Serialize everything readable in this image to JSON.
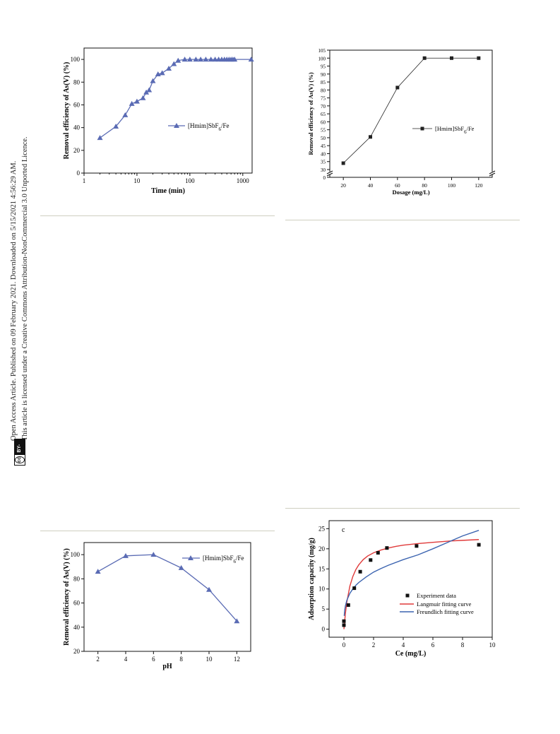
{
  "sidebar": {
    "line1": "Open Access Article. Published on 09 February 2021. Downloaded on 5/15/2021 4:56:29 AM.",
    "line2": "This article is licensed under a Creative Commons Attribution-NonCommercial 3.0 Unported Licence.",
    "badge_cc": "cc",
    "badge_label": "BY-NC"
  },
  "colors": {
    "blue_series": "#5a6bb4",
    "black_series": "#222222",
    "red_fit": "#e03a3a",
    "blue_fit": "#3c64b0",
    "rule": "#cfcfc0"
  },
  "chart_data": [
    {
      "id": "time",
      "type": "line",
      "xlabel": "Time (min)",
      "ylabel": "Removal efficiency of As(V) (%)",
      "x_scale": "log",
      "xlim": [
        1,
        1500
      ],
      "ylim": [
        0,
        110
      ],
      "xticks": [
        1,
        10,
        100,
        1000
      ],
      "xtick_labels": [
        "1",
        "10",
        "100",
        "1000"
      ],
      "yticks": [
        0,
        20,
        40,
        60,
        80,
        100
      ],
      "ytick_labels": [
        "0",
        "20",
        "40",
        "60",
        "80",
        "100"
      ],
      "legend": "top-right",
      "series": [
        {
          "name": "[Hmim]SbF6/Fe",
          "marker": "triangle",
          "x": [
            2,
            4,
            6,
            8,
            10,
            13,
            15,
            17,
            20,
            25,
            30,
            40,
            50,
            60,
            80,
            100,
            130,
            160,
            200,
            250,
            300,
            350,
            400,
            450,
            500,
            550,
            600,
            650,
            700,
            1440
          ],
          "y": [
            31,
            41,
            51,
            61,
            63,
            66,
            71,
            73,
            81,
            87,
            88,
            92,
            96,
            99,
            100,
            100,
            100,
            100,
            100,
            100,
            100,
            100,
            100,
            100,
            100,
            100,
            100,
            100,
            100,
            100
          ]
        }
      ]
    },
    {
      "id": "dosage",
      "type": "line",
      "xlabel": "Dosage (mg/L)",
      "ylabel": "Removal efficiency of As(V) (%)",
      "xlim": [
        10,
        130
      ],
      "ylim": [
        0,
        105
      ],
      "axis_break": true,
      "xticks": [
        20,
        40,
        60,
        80,
        100,
        120
      ],
      "xtick_labels": [
        "20",
        "40",
        "60",
        "80",
        "100",
        "120"
      ],
      "yticks": [
        0,
        30,
        35,
        40,
        45,
        50,
        55,
        60,
        65,
        70,
        75,
        80,
        85,
        90,
        95,
        100,
        105
      ],
      "ytick_labels": [
        "0",
        "30",
        "35",
        "40",
        "45",
        "50",
        "55",
        "60",
        "65",
        "70",
        "75",
        "80",
        "85",
        "90",
        "95",
        "100",
        "105"
      ],
      "legend": "center-right",
      "series": [
        {
          "name": "[Hmim]SbF6/Fe",
          "marker": "square",
          "x": [
            20,
            40,
            60,
            80,
            100,
            120
          ],
          "y": [
            34,
            50.5,
            81.5,
            100,
            100,
            100
          ]
        }
      ]
    },
    {
      "id": "ph",
      "type": "line",
      "xlabel": "pH",
      "ylabel": "Removal efficiency of As(V) (%)",
      "xlim": [
        1,
        13
      ],
      "ylim": [
        20,
        110
      ],
      "xticks": [
        2,
        4,
        6,
        8,
        10,
        12
      ],
      "xtick_labels": [
        "2",
        "4",
        "6",
        "8",
        "10",
        "12"
      ],
      "yticks": [
        20,
        40,
        60,
        80,
        100
      ],
      "ytick_labels": [
        "20",
        "40",
        "60",
        "80",
        "100"
      ],
      "legend": "top-right",
      "series": [
        {
          "name": "[Hmim]SbF6/Fe",
          "marker": "triangle",
          "x": [
            2,
            4,
            6,
            8,
            10,
            12
          ],
          "y": [
            86,
            99,
            100,
            89,
            71,
            45
          ]
        }
      ]
    },
    {
      "id": "isotherm",
      "type": "scatter",
      "annotation": "c",
      "xlabel": "Ce (mg/L)",
      "ylabel": "Adsorption capacity (mg/g)",
      "xlim": [
        -1,
        10
      ],
      "ylim": [
        -2,
        27
      ],
      "xticks": [
        0,
        2,
        4,
        6,
        8,
        10
      ],
      "xtick_labels": [
        "0",
        "2",
        "4",
        "6",
        "8",
        "10"
      ],
      "yticks": [
        0,
        5,
        10,
        15,
        20,
        25
      ],
      "ytick_labels": [
        "0",
        "5",
        "10",
        "15",
        "20",
        "25"
      ],
      "legend": "bottom-right",
      "series": [
        {
          "name": "Experiment data",
          "marker": "square",
          "x": [
            0.0,
            0.0,
            0.3,
            0.7,
            1.1,
            1.8,
            2.3,
            2.9,
            4.9,
            9.1
          ],
          "y": [
            1.0,
            2.0,
            6.0,
            10.2,
            14.3,
            17.2,
            19.0,
            20.2,
            20.7,
            21.0
          ]
        },
        {
          "name": "Langmuir fitting curve",
          "line": "red",
          "x": [
            0,
            0.1,
            0.2,
            0.4,
            0.6,
            0.8,
            1.0,
            1.3,
            1.6,
            2.0,
            2.5,
            3.0,
            3.5,
            4.0,
            4.5,
            5.0,
            6.0,
            7.0,
            8.0,
            9.1
          ],
          "y": [
            0,
            3.9,
            6.8,
            10.7,
            13.1,
            14.8,
            16.0,
            17.3,
            18.2,
            19.0,
            19.7,
            20.2,
            20.6,
            20.9,
            21.1,
            21.3,
            21.6,
            21.9,
            22.1,
            22.3
          ]
        },
        {
          "name": "Freundlich fitting curve",
          "line": "blue",
          "x": [
            0.02,
            0.05,
            0.1,
            0.2,
            0.4,
            0.6,
            0.8,
            1.0,
            1.5,
            2.0,
            2.5,
            3.0,
            4.0,
            5.0,
            6.0,
            7.0,
            8.0,
            9.1
          ],
          "y": [
            3.3,
            4.6,
            5.8,
            7.2,
            8.9,
            10.0,
            10.9,
            11.6,
            13.0,
            14.2,
            15.1,
            15.9,
            17.3,
            18.5,
            20.0,
            21.6,
            23.2,
            24.6
          ]
        }
      ]
    }
  ]
}
